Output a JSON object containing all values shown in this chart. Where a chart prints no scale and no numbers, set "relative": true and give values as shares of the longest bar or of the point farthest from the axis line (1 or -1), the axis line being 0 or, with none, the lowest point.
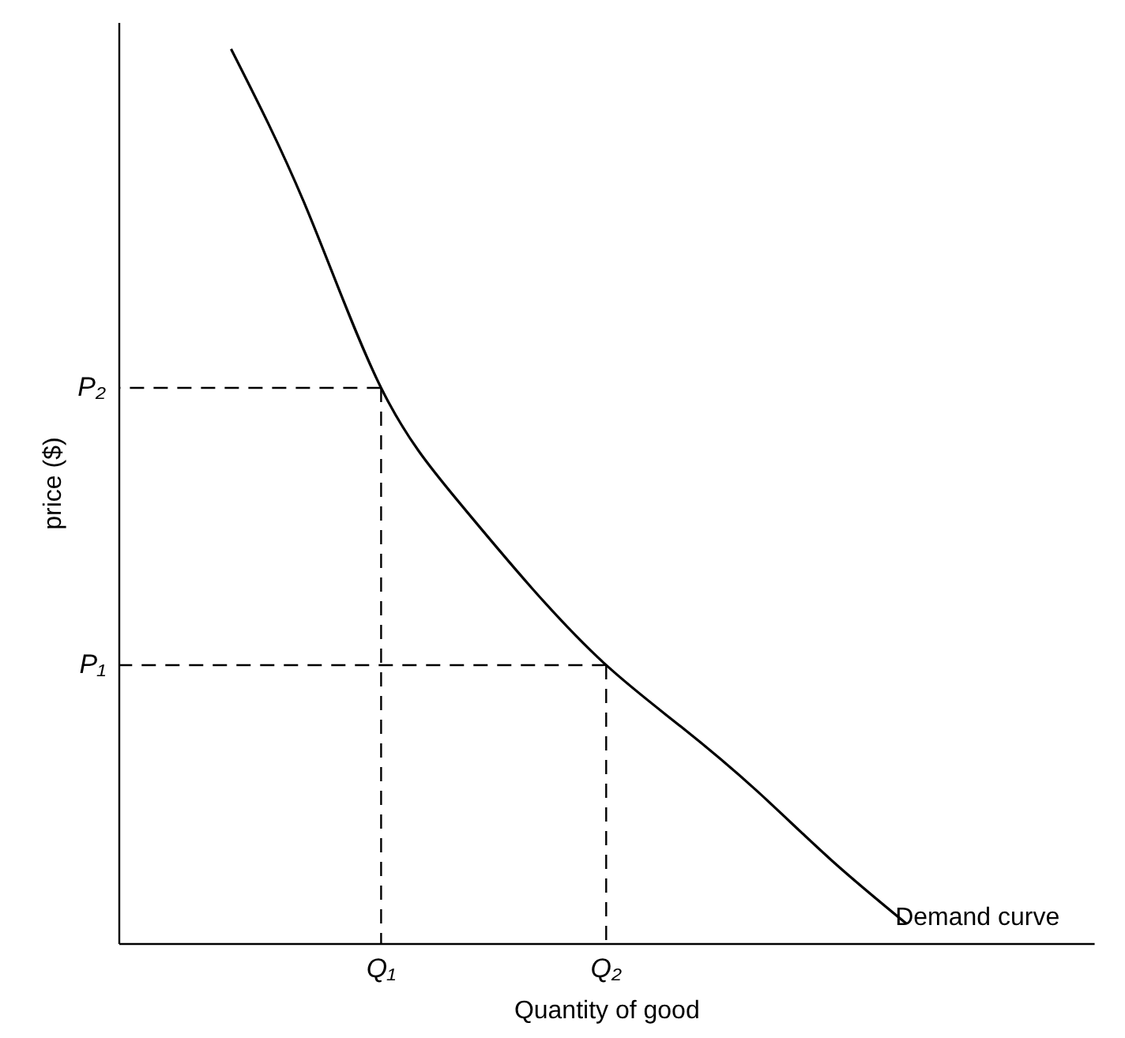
{
  "chart_data": {
    "type": "line",
    "xlabel": "Quantity of good",
    "ylabel": "price ($)",
    "relative": true,
    "categories": [
      null,
      null,
      null,
      "Q₁",
      null,
      null,
      "Q₂",
      null,
      null,
      null,
      null,
      null,
      null
    ],
    "grid": false,
    "marker": "none",
    "line_style": "solid",
    "series": [
      {
        "name": "Demand curve",
        "color": "#000000",
        "values": [
          null,
          1,
          0.823,
          0.621,
          0.497,
          0.398,
          0.311,
          0.242,
          0.171,
          0.093,
          0.022,
          null,
          null
        ]
      }
    ],
    "ref_lines": [
      {
        "axis": "y",
        "value": 0.621,
        "label": "P₂",
        "color": "#000000",
        "line_style": "dashed"
      },
      {
        "axis": "y",
        "value": 0.311,
        "label": "P₁",
        "color": "#000000",
        "line_style": "dashed"
      },
      {
        "axis": "x",
        "value": "Q₁",
        "color": "#000000",
        "line_style": "dashed"
      },
      {
        "axis": "x",
        "value": "Q₂",
        "color": "#000000",
        "line_style": "dashed"
      }
    ]
  }
}
